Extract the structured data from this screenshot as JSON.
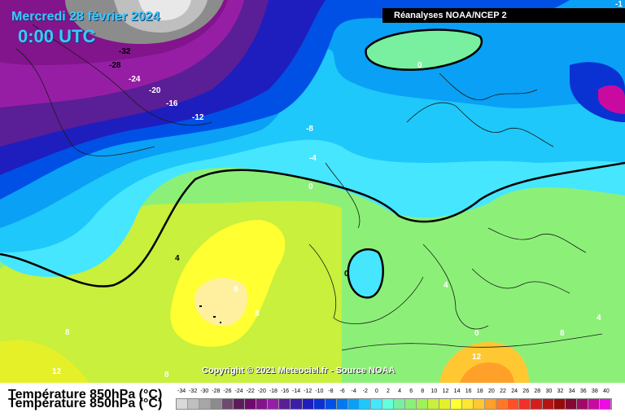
{
  "header": {
    "date": "Mercredi 28 février 2024",
    "time": "0:00 UTC",
    "source": "Réanalyses NOAA/NCEP 2"
  },
  "footer": {
    "variable": "Température 850hPa (°C)",
    "copyright": "Copyright © 2021 Meteociel.fr - Source NOAA"
  },
  "isotherm_labels": [
    "-32",
    "-28",
    "-24",
    "-20",
    "-16",
    "-12",
    "-8",
    "-4",
    "0",
    "0",
    "0",
    "4",
    "4",
    "8",
    "8",
    "8",
    "8",
    "8",
    "12",
    "12",
    "0",
    "4",
    "-1"
  ],
  "legend": {
    "values": [
      "-34",
      "-32",
      "-30",
      "-28",
      "-26",
      "-24",
      "-22",
      "-20",
      "-18",
      "-16",
      "-14",
      "-12",
      "-10",
      "-8",
      "-6",
      "-4",
      "-2",
      "0",
      "2",
      "4",
      "6",
      "8",
      "10",
      "12",
      "14",
      "16",
      "18",
      "20",
      "22",
      "24",
      "26",
      "28",
      "30",
      "32",
      "34",
      "36",
      "38",
      "40"
    ],
    "colors": [
      "#d9d9d9",
      "#bfbfbf",
      "#a6a6a6",
      "#8c8c8c",
      "#6e4a6e",
      "#5a1d5a",
      "#6e0a6e",
      "#82148c",
      "#961ea5",
      "#5a1e96",
      "#3c1eaa",
      "#1e1ebe",
      "#0a32d2",
      "#0050e6",
      "#0078f0",
      "#0aa0f5",
      "#1ec8fa",
      "#46e6ff",
      "#64ffdc",
      "#78f0a0",
      "#8cf078",
      "#a0f05a",
      "#c8f03c",
      "#e6f028",
      "#ffff32",
      "#ffe632",
      "#ffc832",
      "#ffa028",
      "#ff7828",
      "#ff5028",
      "#f03228",
      "#d21e1e",
      "#b41414",
      "#960a0a",
      "#820a32",
      "#a00a64",
      "#c80aa0",
      "#f00ae6"
    ]
  }
}
